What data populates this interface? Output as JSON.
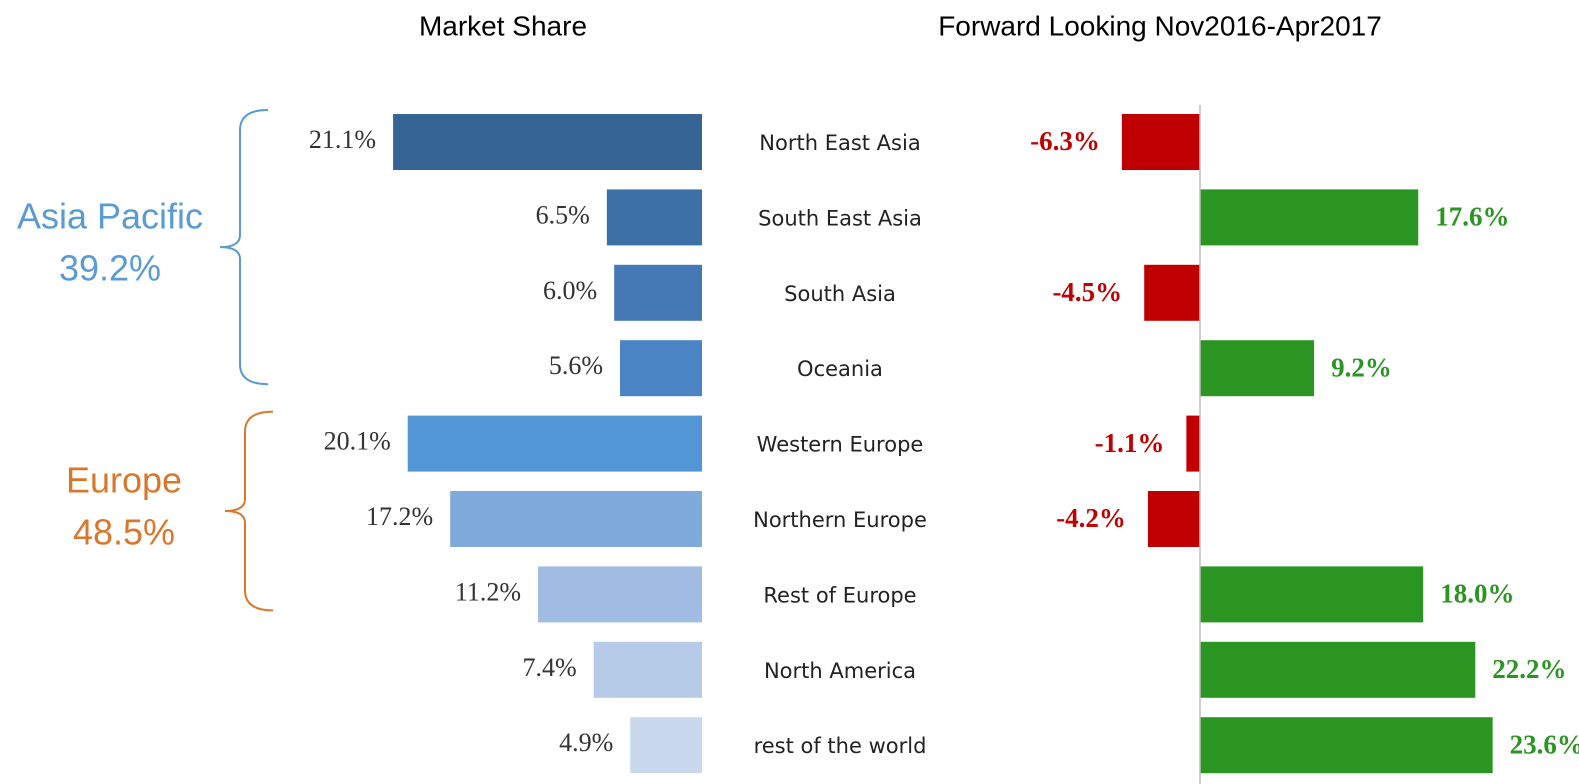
{
  "chart_data": [
    {
      "type": "bar",
      "orientation": "horizontal",
      "direction": "right-to-left",
      "title": "Market Share",
      "categories": [
        "North  East Asia",
        "South East Asia",
        "South  Asia",
        "Oceania",
        "Western  Europe",
        "Northern  Europe",
        "Rest of Europe",
        "North  America",
        "rest of the world"
      ],
      "values": [
        21.1,
        6.5,
        6.0,
        5.6,
        20.1,
        17.2,
        11.2,
        7.4,
        4.9
      ],
      "value_labels": [
        "21.1%",
        "6.5%",
        "6.0%",
        "5.6%",
        "20.1%",
        "17.2%",
        "11.2%",
        "7.4%",
        "4.9%"
      ],
      "colors": [
        "#366494",
        "#3c70a6",
        "#4479b6",
        "#4a84c4",
        "#5296d6",
        "#80aadc",
        "#a1bce2",
        "#b6cbe7",
        "#c9d8ec"
      ],
      "xlim": [
        0,
        25
      ],
      "groups": [
        {
          "name": "Asia Pacific",
          "share": "39.2%",
          "color": "#5b9bd5"
        },
        {
          "name": "Europe",
          "share": "48.5%",
          "color": "#d9782d"
        }
      ]
    },
    {
      "type": "bar",
      "orientation": "horizontal",
      "title": "Forward Looking Nov2016-Apr2017",
      "values": [
        -6.3,
        17.6,
        -4.5,
        9.2,
        -1.1,
        -4.2,
        18.0,
        22.2,
        23.6
      ],
      "value_labels": [
        "-6.3%",
        "17.6%",
        "-4.5%",
        "9.2%",
        "-1.1%",
        "-4.2%",
        "18.0%",
        "22.2%",
        "23.6%"
      ],
      "positive_color": "#2a9520",
      "negative_color": "#c00000",
      "xlim": [
        -10,
        25
      ]
    }
  ]
}
